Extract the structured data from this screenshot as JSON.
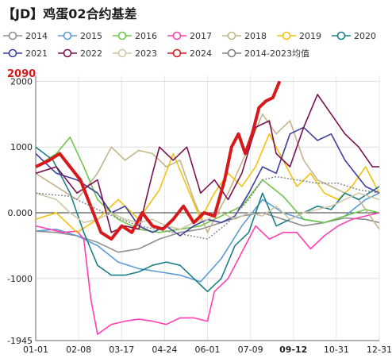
{
  "title": "【JD】鸡蛋02合约基差",
  "chart_data": {
    "type": "line",
    "title": "【JD】鸡蛋02合约基差",
    "x_ticks": [
      "01-01",
      "02-08",
      "03-17",
      "04-24",
      "06-01",
      "07-09",
      "09-12",
      "10-31",
      "12-31"
    ],
    "highlight_x_tick": "09-12",
    "y_ticks": [
      "2000",
      "1000",
      "0.000",
      "-1000"
    ],
    "ylim": [
      -1945,
      2090
    ],
    "ylim_labels": {
      "max": "2090",
      "min": "-1945"
    },
    "highlight_color": "#d7191c",
    "series": [
      {
        "name": "2014",
        "color": "#8f8f8f",
        "dashed": false,
        "width": 1.6,
        "values": [
          [
            0,
            -280
          ],
          [
            6,
            -300
          ],
          [
            12,
            -350
          ],
          [
            18,
            -450
          ],
          [
            24,
            -600
          ],
          [
            30,
            -550
          ],
          [
            36,
            -400
          ],
          [
            42,
            -300
          ],
          [
            48,
            -250
          ],
          [
            54,
            -150
          ],
          [
            60,
            -50
          ],
          [
            66,
            0
          ],
          [
            72,
            -100
          ],
          [
            78,
            -200
          ],
          [
            84,
            -150
          ],
          [
            90,
            -80
          ],
          [
            96,
            -100
          ],
          [
            100,
            -150
          ]
        ]
      },
      {
        "name": "2015",
        "color": "#5b9bd5",
        "dashed": false,
        "width": 1.6,
        "values": [
          [
            0,
            -280
          ],
          [
            6,
            -250
          ],
          [
            12,
            -350
          ],
          [
            18,
            -500
          ],
          [
            24,
            -750
          ],
          [
            30,
            -850
          ],
          [
            36,
            -900
          ],
          [
            42,
            -950
          ],
          [
            48,
            -1050
          ],
          [
            54,
            -700
          ],
          [
            60,
            -200
          ],
          [
            66,
            200
          ],
          [
            72,
            0
          ],
          [
            78,
            -100
          ],
          [
            84,
            -150
          ],
          [
            90,
            -50
          ],
          [
            96,
            200
          ],
          [
            100,
            300
          ]
        ]
      },
      {
        "name": "2016",
        "color": "#70c54a",
        "dashed": false,
        "width": 1.6,
        "values": [
          [
            0,
            700
          ],
          [
            6,
            900
          ],
          [
            10,
            1150
          ],
          [
            14,
            700
          ],
          [
            18,
            200
          ],
          [
            24,
            -100
          ],
          [
            30,
            -250
          ],
          [
            36,
            -300
          ],
          [
            42,
            -250
          ],
          [
            48,
            -200
          ],
          [
            54,
            -50
          ],
          [
            60,
            100
          ],
          [
            66,
            500
          ],
          [
            72,
            250
          ],
          [
            78,
            -100
          ],
          [
            84,
            -150
          ],
          [
            90,
            -50
          ],
          [
            96,
            50
          ],
          [
            100,
            0
          ]
        ]
      },
      {
        "name": "2017",
        "color": "#ff3fb4",
        "dashed": false,
        "width": 1.6,
        "values": [
          [
            0,
            -200
          ],
          [
            4,
            -250
          ],
          [
            8,
            -300
          ],
          [
            12,
            -280
          ],
          [
            14,
            -400
          ],
          [
            16,
            -1300
          ],
          [
            18,
            -1850
          ],
          [
            22,
            -1700
          ],
          [
            26,
            -1650
          ],
          [
            30,
            -1620
          ],
          [
            34,
            -1650
          ],
          [
            38,
            -1700
          ],
          [
            42,
            -1600
          ],
          [
            46,
            -1600
          ],
          [
            50,
            -1650
          ],
          [
            52,
            -1200
          ],
          [
            56,
            -1000
          ],
          [
            60,
            -600
          ],
          [
            64,
            -200
          ],
          [
            68,
            -400
          ],
          [
            72,
            -300
          ],
          [
            76,
            -300
          ],
          [
            80,
            -550
          ],
          [
            84,
            -350
          ],
          [
            88,
            -200
          ],
          [
            92,
            -100
          ],
          [
            96,
            -50
          ],
          [
            100,
            0
          ]
        ]
      },
      {
        "name": "2018",
        "color": "#c4b48a",
        "dashed": false,
        "width": 1.6,
        "values": [
          [
            0,
            600
          ],
          [
            6,
            400
          ],
          [
            12,
            200
          ],
          [
            18,
            600
          ],
          [
            22,
            1000
          ],
          [
            26,
            800
          ],
          [
            30,
            950
          ],
          [
            34,
            900
          ],
          [
            38,
            700
          ],
          [
            42,
            800
          ],
          [
            46,
            200
          ],
          [
            50,
            -300
          ],
          [
            56,
            300
          ],
          [
            62,
            1000
          ],
          [
            66,
            1500
          ],
          [
            70,
            1200
          ],
          [
            74,
            1400
          ],
          [
            78,
            800
          ],
          [
            82,
            500
          ],
          [
            86,
            400
          ],
          [
            90,
            300
          ],
          [
            94,
            200
          ],
          [
            100,
            -250
          ]
        ]
      },
      {
        "name": "2019",
        "color": "#f4c20d",
        "dashed": false,
        "width": 1.6,
        "values": [
          [
            0,
            -100
          ],
          [
            6,
            0
          ],
          [
            12,
            -300
          ],
          [
            18,
            -100
          ],
          [
            24,
            200
          ],
          [
            30,
            -100
          ],
          [
            36,
            350
          ],
          [
            40,
            900
          ],
          [
            44,
            400
          ],
          [
            48,
            -100
          ],
          [
            52,
            300
          ],
          [
            56,
            600
          ],
          [
            60,
            400
          ],
          [
            64,
            700
          ],
          [
            68,
            1200
          ],
          [
            72,
            800
          ],
          [
            76,
            400
          ],
          [
            80,
            600
          ],
          [
            84,
            300
          ],
          [
            88,
            200
          ],
          [
            92,
            400
          ],
          [
            96,
            700
          ],
          [
            100,
            300
          ]
        ]
      },
      {
        "name": "2020",
        "color": "#1b7f8a",
        "dashed": false,
        "width": 1.6,
        "values": [
          [
            0,
            1000
          ],
          [
            5,
            800
          ],
          [
            10,
            300
          ],
          [
            14,
            -300
          ],
          [
            18,
            -800
          ],
          [
            22,
            -950
          ],
          [
            26,
            -950
          ],
          [
            30,
            -900
          ],
          [
            34,
            -800
          ],
          [
            38,
            -750
          ],
          [
            42,
            -800
          ],
          [
            46,
            -1000
          ],
          [
            50,
            -1200
          ],
          [
            54,
            -1000
          ],
          [
            58,
            -500
          ],
          [
            62,
            -300
          ],
          [
            66,
            300
          ],
          [
            70,
            -200
          ],
          [
            74,
            -100
          ],
          [
            78,
            0
          ],
          [
            82,
            100
          ],
          [
            86,
            50
          ],
          [
            90,
            300
          ],
          [
            94,
            200
          ],
          [
            100,
            400
          ]
        ]
      },
      {
        "name": "2021",
        "color": "#3f3fa0",
        "dashed": false,
        "width": 1.6,
        "values": [
          [
            0,
            900
          ],
          [
            6,
            600
          ],
          [
            12,
            500
          ],
          [
            18,
            300
          ],
          [
            22,
            0
          ],
          [
            26,
            100
          ],
          [
            30,
            -200
          ],
          [
            34,
            -300
          ],
          [
            38,
            -200
          ],
          [
            42,
            -350
          ],
          [
            46,
            -200
          ],
          [
            50,
            -100
          ],
          [
            54,
            -150
          ],
          [
            58,
            -50
          ],
          [
            62,
            300
          ],
          [
            66,
            700
          ],
          [
            70,
            600
          ],
          [
            74,
            1200
          ],
          [
            78,
            1300
          ],
          [
            82,
            1100
          ],
          [
            86,
            1200
          ],
          [
            90,
            800
          ],
          [
            96,
            400
          ],
          [
            100,
            300
          ]
        ]
      },
      {
        "name": "2022",
        "color": "#7a1050",
        "dashed": false,
        "width": 1.6,
        "values": [
          [
            0,
            600
          ],
          [
            6,
            700
          ],
          [
            12,
            300
          ],
          [
            18,
            500
          ],
          [
            22,
            -300
          ],
          [
            26,
            -200
          ],
          [
            30,
            -250
          ],
          [
            34,
            600
          ],
          [
            36,
            1000
          ],
          [
            40,
            800
          ],
          [
            44,
            1000
          ],
          [
            48,
            300
          ],
          [
            52,
            500
          ],
          [
            56,
            200
          ],
          [
            60,
            600
          ],
          [
            64,
            1300
          ],
          [
            68,
            1400
          ],
          [
            70,
            900
          ],
          [
            74,
            700
          ],
          [
            78,
            1300
          ],
          [
            82,
            1800
          ],
          [
            86,
            1500
          ],
          [
            90,
            1200
          ],
          [
            94,
            1000
          ],
          [
            98,
            700
          ],
          [
            100,
            700
          ]
        ]
      },
      {
        "name": "2023",
        "color": "#cfc7a6",
        "dashed": false,
        "width": 1.6,
        "values": [
          [
            0,
            300
          ],
          [
            6,
            200
          ],
          [
            10,
            0
          ],
          [
            14,
            -150
          ],
          [
            18,
            -100
          ],
          [
            22,
            0
          ],
          [
            26,
            -100
          ],
          [
            30,
            -150
          ],
          [
            34,
            -100
          ],
          [
            38,
            -200
          ],
          [
            42,
            -250
          ],
          [
            46,
            -150
          ],
          [
            50,
            -100
          ],
          [
            54,
            0
          ],
          [
            58,
            -100
          ],
          [
            62,
            0
          ],
          [
            66,
            -50
          ],
          [
            70,
            100
          ],
          [
            74,
            -100
          ],
          [
            78,
            0
          ],
          [
            82,
            50
          ],
          [
            86,
            100
          ],
          [
            90,
            200
          ],
          [
            94,
            300
          ],
          [
            100,
            200
          ]
        ]
      },
      {
        "name": "2024",
        "color": "#d7191c",
        "dashed": false,
        "width": 4,
        "values": [
          [
            0,
            700
          ],
          [
            4,
            800
          ],
          [
            7,
            900
          ],
          [
            10,
            700
          ],
          [
            13,
            500
          ],
          [
            16,
            100
          ],
          [
            19,
            -300
          ],
          [
            22,
            -400
          ],
          [
            25,
            -200
          ],
          [
            28,
            -300
          ],
          [
            31,
            0
          ],
          [
            34,
            -200
          ],
          [
            37,
            -250
          ],
          [
            40,
            -100
          ],
          [
            43,
            100
          ],
          [
            46,
            -150
          ],
          [
            49,
            0
          ],
          [
            52,
            -50
          ],
          [
            55,
            500
          ],
          [
            57,
            1000
          ],
          [
            59,
            1200
          ],
          [
            61,
            900
          ],
          [
            63,
            1200
          ],
          [
            65,
            1600
          ],
          [
            67,
            1700
          ],
          [
            69,
            1750
          ],
          [
            71,
            2000
          ]
        ]
      },
      {
        "name": "2014-2023均值",
        "color": "#808080",
        "dashed": true,
        "width": 1.4,
        "values": [
          [
            0,
            300
          ],
          [
            10,
            250
          ],
          [
            20,
            0
          ],
          [
            30,
            -200
          ],
          [
            40,
            -300
          ],
          [
            50,
            -400
          ],
          [
            56,
            -150
          ],
          [
            62,
            200
          ],
          [
            66,
            500
          ],
          [
            70,
            550
          ],
          [
            76,
            500
          ],
          [
            82,
            450
          ],
          [
            88,
            450
          ],
          [
            94,
            350
          ],
          [
            100,
            300
          ]
        ]
      }
    ]
  }
}
